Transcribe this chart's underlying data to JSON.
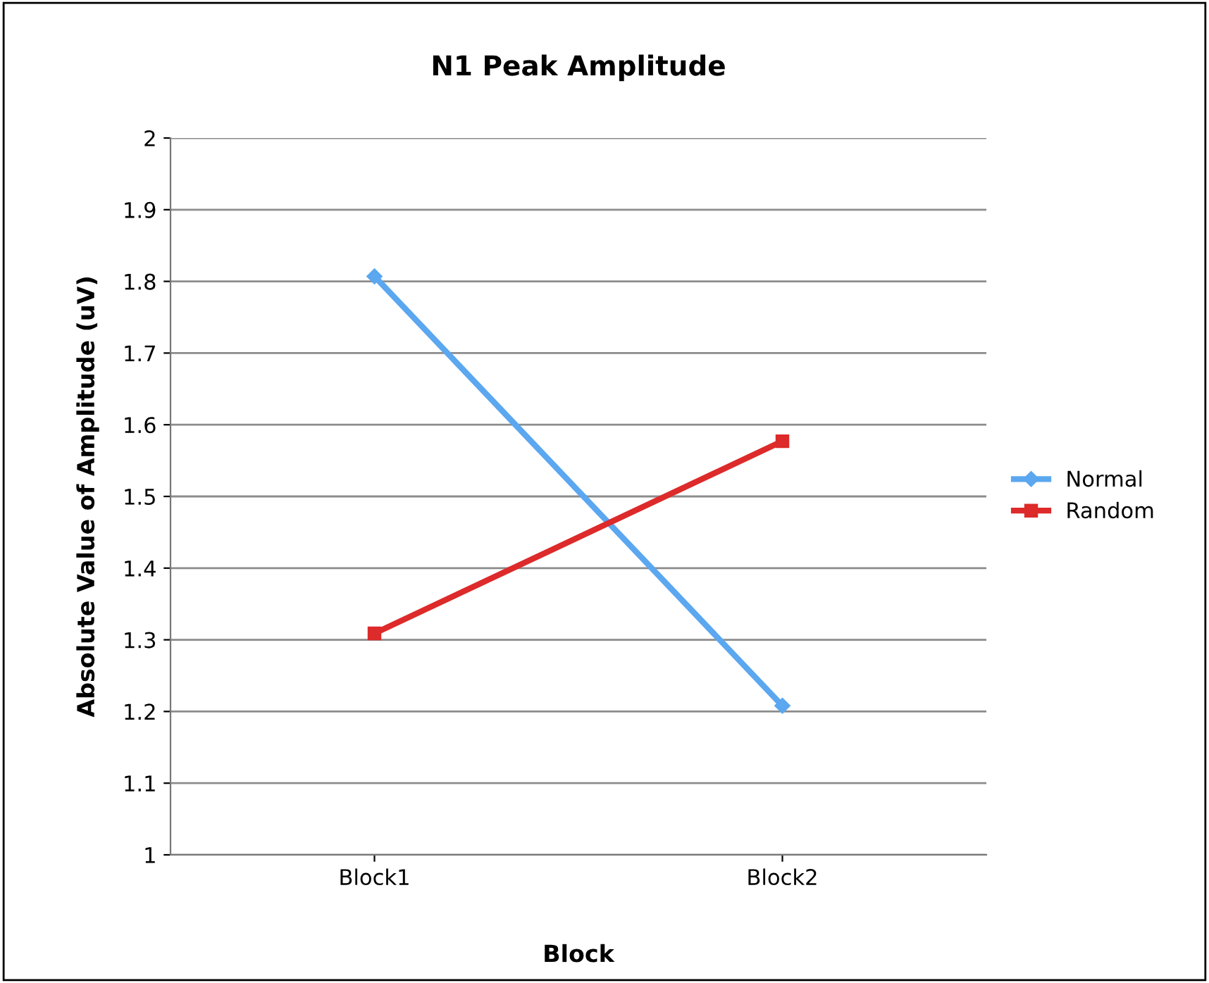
{
  "chart_data": {
    "type": "line",
    "title": "N1 Peak Amplitude",
    "xlabel": "Block",
    "ylabel": "Absolute Value of Amplitude (uV)",
    "categories": [
      "Block1",
      "Block2"
    ],
    "series": [
      {
        "name": "Normal",
        "color": "#5ba7f0",
        "values": [
          1.807,
          1.208
        ],
        "marker": "diamond"
      },
      {
        "name": "Random",
        "color": "#dd2a2a",
        "values": [
          1.309,
          1.577
        ],
        "marker": "square"
      }
    ],
    "ylim": [
      1,
      2
    ],
    "yticks": [
      1,
      1.1,
      1.2,
      1.3,
      1.4,
      1.5,
      1.6,
      1.7,
      1.8,
      1.9,
      2
    ],
    "grid": "y",
    "legend": "right",
    "line_style": "solid"
  }
}
